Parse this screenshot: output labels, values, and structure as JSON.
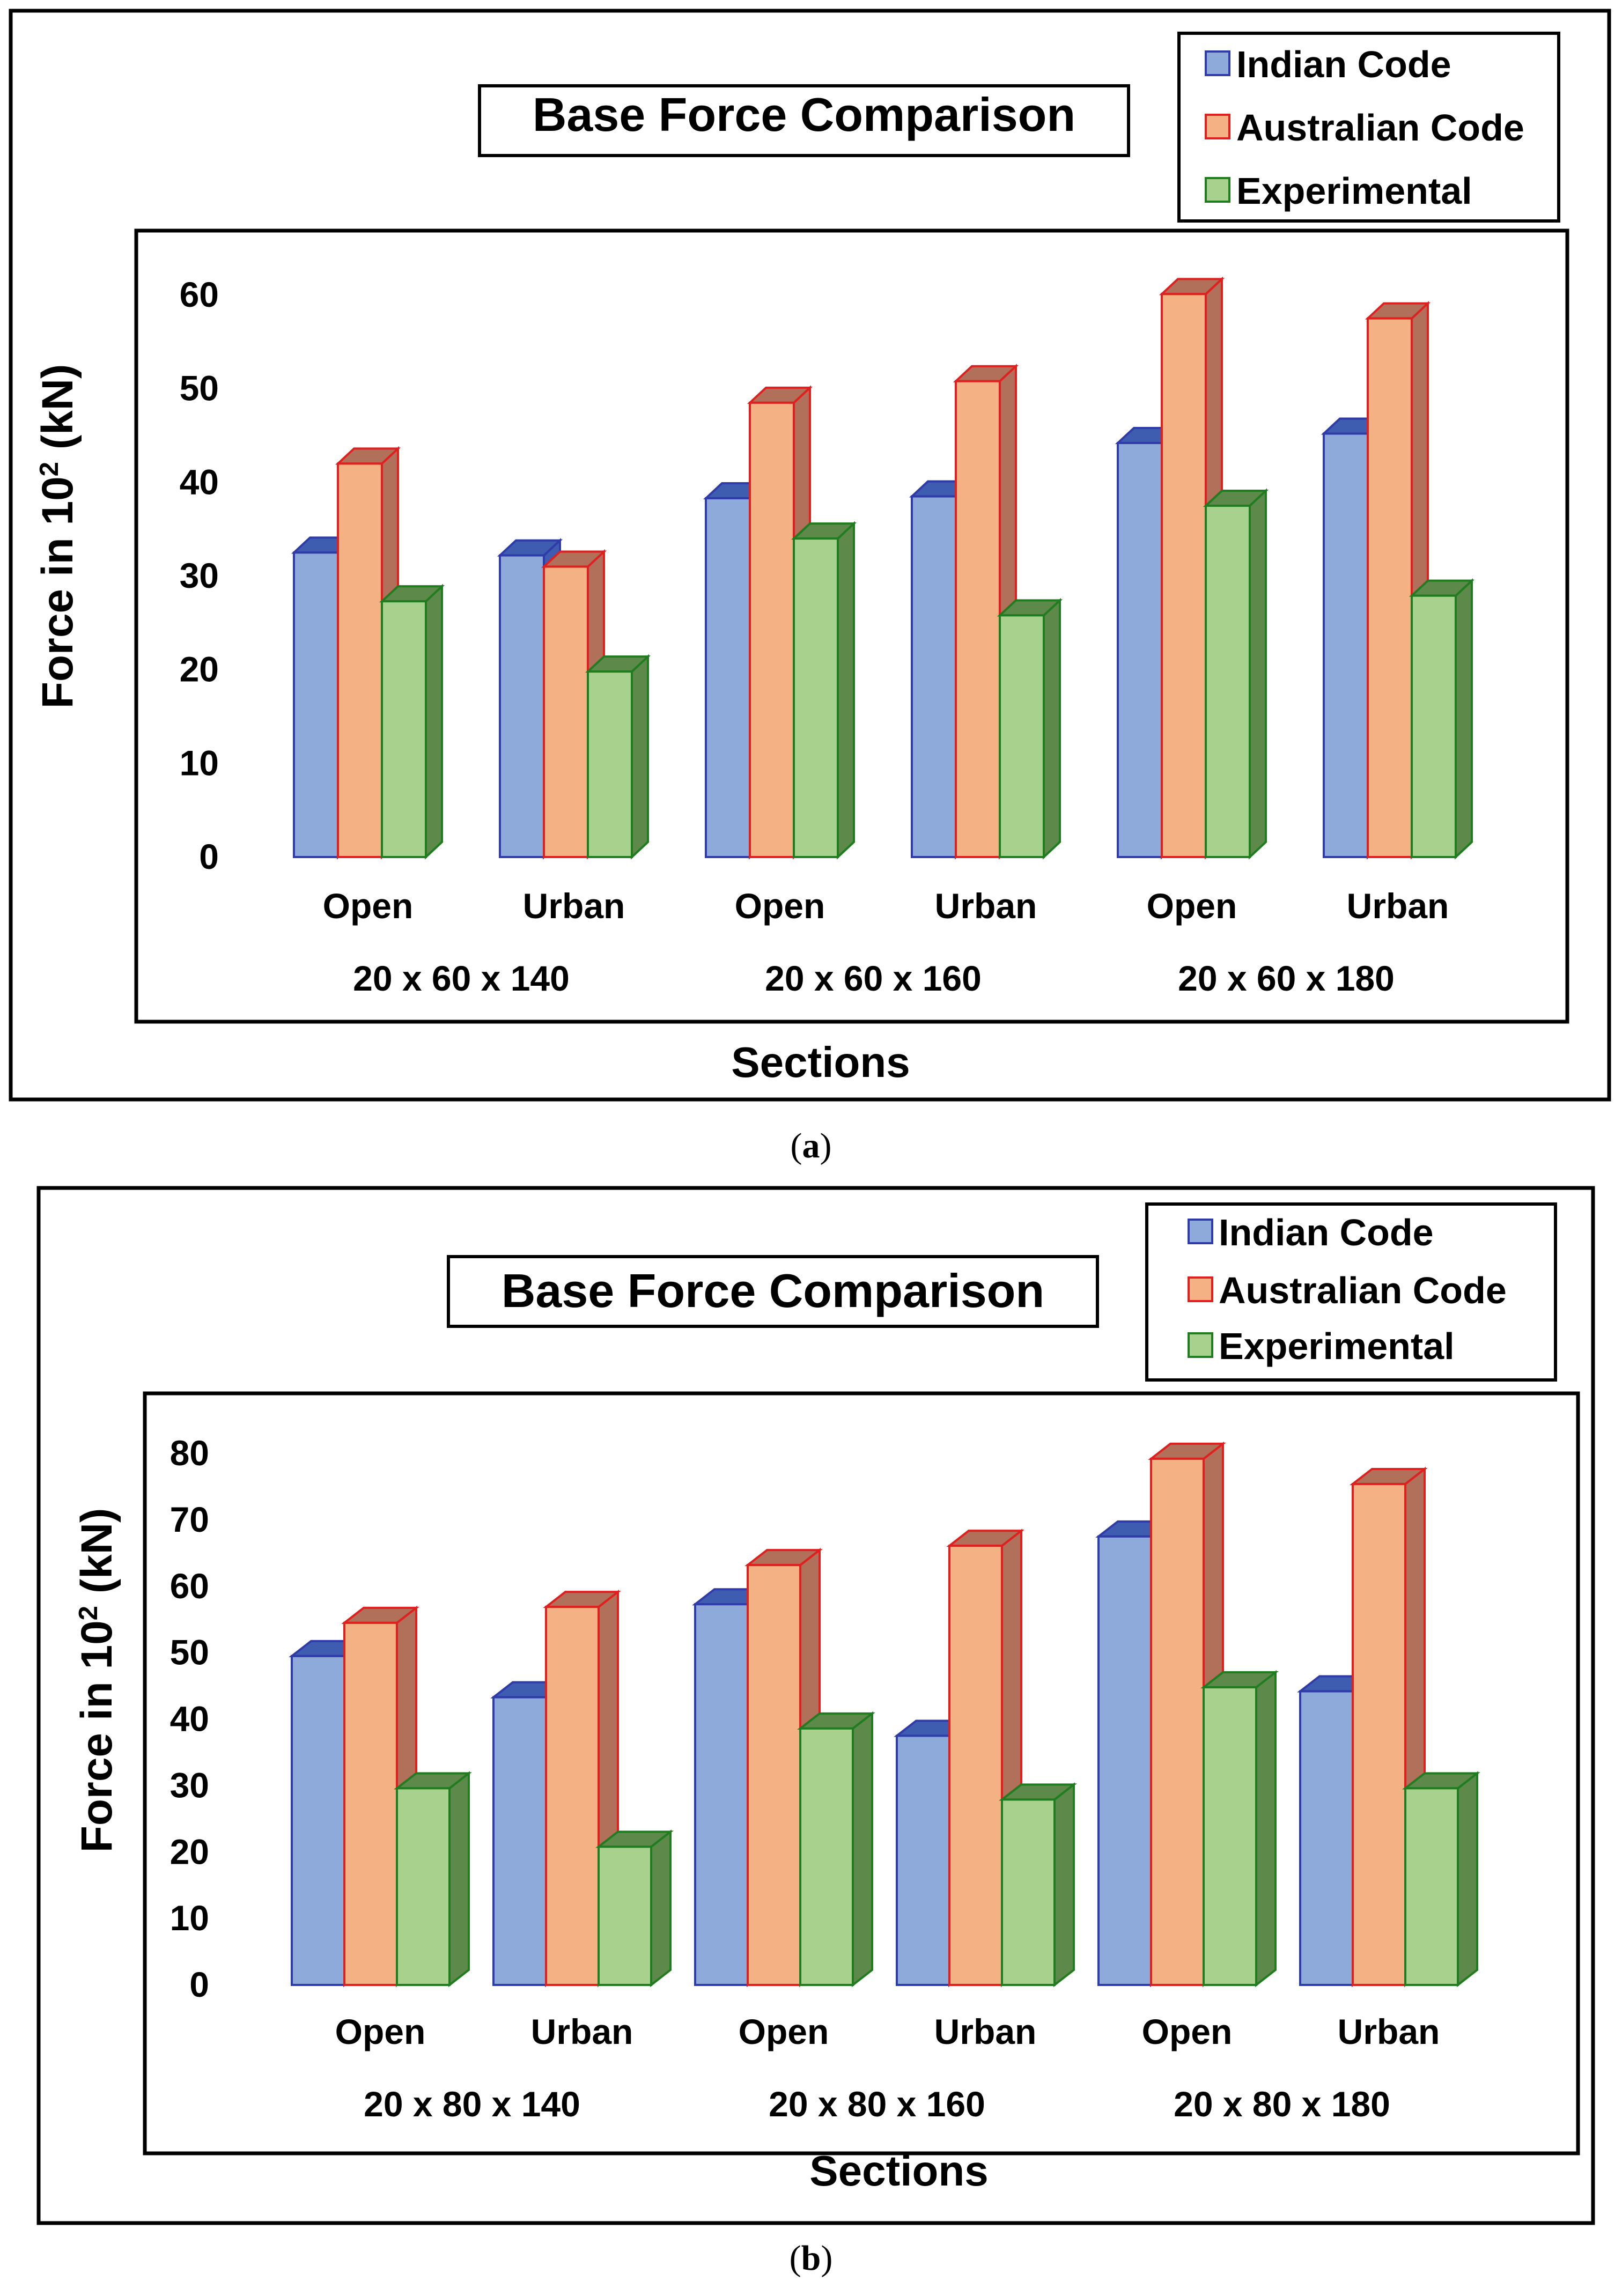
{
  "chart_data": [
    {
      "type": "bar",
      "title": "Base Force Comparison",
      "caption_open": "(",
      "caption_letter": "a",
      "caption_close": ")",
      "ylabel_pre": "Force in 10",
      "ylabel_sup": "2",
      "ylabel_post": " (kN)",
      "xlabel": "Sections",
      "ylim": [
        0,
        60
      ],
      "yticks": [
        0,
        10,
        20,
        30,
        40,
        50,
        60
      ],
      "categories": [
        "Open",
        "Urban",
        "Open",
        "Urban",
        "Open",
        "Urban"
      ],
      "groups": [
        "20 x 60 x 140",
        "20 x 60 x 160",
        "20 x 60 x 180"
      ],
      "series": [
        {
          "name": "Indian Code",
          "values": [
            32.5,
            32.2,
            38.3,
            38.5,
            44.2,
            45.2
          ]
        },
        {
          "name": "Australian Code",
          "values": [
            42.0,
            31.0,
            48.5,
            50.8,
            60.1,
            57.5
          ]
        },
        {
          "name": "Experimental",
          "values": [
            27.3,
            19.8,
            34.0,
            25.8,
            37.5,
            27.9
          ]
        }
      ]
    },
    {
      "type": "bar",
      "title": "Base Force Comparison",
      "caption_open": "(",
      "caption_letter": "b",
      "caption_close": ")",
      "ylabel_pre": "Force in 10",
      "ylabel_sup": "2",
      "ylabel_post": " (kN)",
      "xlabel": "Sections",
      "ylim": [
        0,
        80
      ],
      "yticks": [
        0,
        10,
        20,
        30,
        40,
        50,
        60,
        70,
        80
      ],
      "categories": [
        "Open",
        "Urban",
        "Open",
        "Urban",
        "Open",
        "Urban"
      ],
      "groups": [
        "20 x 80 x 140",
        "20 x 80 x 160",
        "20 x 80 x 180"
      ],
      "series": [
        {
          "name": "Indian Code",
          "values": [
            49.5,
            43.3,
            57.3,
            37.5,
            67.5,
            44.2
          ]
        },
        {
          "name": "Australian Code",
          "values": [
            54.5,
            56.9,
            63.2,
            66.1,
            79.2,
            75.4
          ]
        },
        {
          "name": "Experimental",
          "values": [
            29.6,
            20.8,
            38.6,
            27.9,
            44.8,
            29.6
          ]
        }
      ]
    }
  ],
  "colors": {
    "series_fill": [
      "#8eaadb",
      "#f4b183",
      "#a9d18e"
    ],
    "series_stroke": [
      "#2e3ba8",
      "#e01f1f",
      "#1f7d1f"
    ],
    "series_side": [
      "#3e5cb0",
      "#b0705a",
      "#5d8a4a"
    ]
  }
}
